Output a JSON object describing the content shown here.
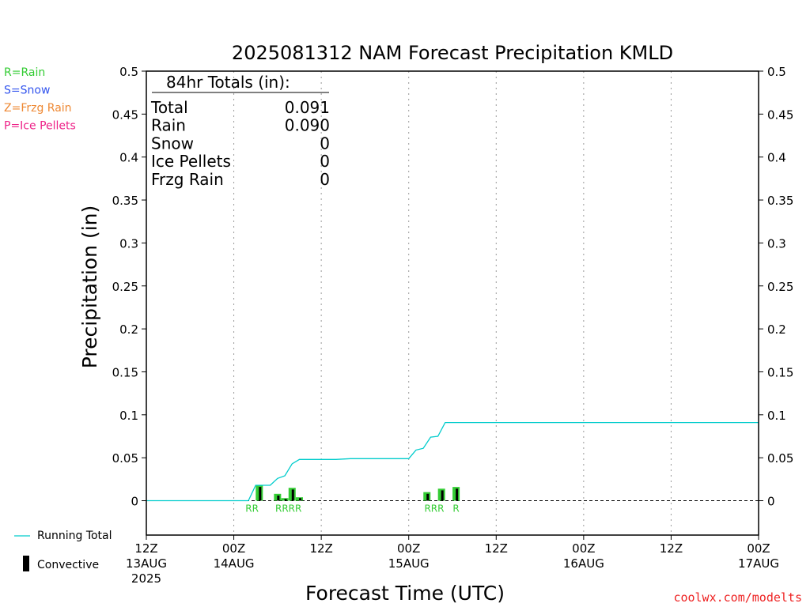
{
  "chart_data": {
    "type": "bar",
    "title": "2025081312 NAM Forecast Precipitation KMLD",
    "xlabel": "Forecast Time (UTC)",
    "ylabel": "Precipitation (in)",
    "ylim": [
      -0.04,
      0.5
    ],
    "y_ticks": [
      "0.5",
      "0.45",
      "0.4",
      "0.35",
      "0.3",
      "0.25",
      "0.2",
      "0.15",
      "0.1",
      "0.05",
      "0"
    ],
    "xlim_hours": [
      0,
      84
    ],
    "grid": "vertical dotted at 12-hour intervals",
    "x_ticks": [
      {
        "hour": 0,
        "lines": [
          "12Z",
          "13AUG",
          "2025"
        ]
      },
      {
        "hour": 12,
        "lines": [
          "00Z",
          "14AUG"
        ]
      },
      {
        "hour": 24,
        "lines": [
          "12Z"
        ]
      },
      {
        "hour": 36,
        "lines": [
          "00Z",
          "15AUG"
        ]
      },
      {
        "hour": 48,
        "lines": [
          "12Z"
        ]
      },
      {
        "hour": 60,
        "lines": [
          "00Z",
          "16AUG"
        ]
      },
      {
        "hour": 72,
        "lines": [
          "12Z"
        ]
      },
      {
        "hour": 84,
        "lines": [
          "00Z",
          "17AUG"
        ]
      }
    ],
    "series": [
      {
        "name": "Running Total",
        "color": "#00cccc",
        "x": [
          0,
          3,
          6,
          9,
          12,
          14,
          15,
          16,
          17,
          18,
          19,
          20,
          21,
          22,
          24,
          26,
          28,
          30,
          32,
          34,
          36,
          37,
          38,
          39,
          40,
          41,
          42,
          43,
          45,
          48,
          51,
          54,
          57,
          60,
          63,
          66,
          69,
          72,
          75,
          78,
          81,
          84
        ],
        "y": [
          0,
          0,
          0,
          0,
          0,
          0,
          0.018,
          0.018,
          0.018,
          0.026,
          0.029,
          0.043,
          0.048,
          0.048,
          0.048,
          0.048,
          0.049,
          0.049,
          0.049,
          0.049,
          0.049,
          0.059,
          0.061,
          0.074,
          0.075,
          0.091,
          0.091,
          0.091,
          0.091,
          0.091,
          0.091,
          0.091,
          0.091,
          0.091,
          0.091,
          0.091,
          0.091,
          0.091,
          0.091,
          0.091,
          0.091,
          0.091
        ]
      }
    ],
    "bars": [
      {
        "hour": 15.5,
        "total": 0.018,
        "convective": 0.016,
        "type": "R"
      },
      {
        "hour": 18.0,
        "total": 0.008,
        "convective": 0.006,
        "type": "R"
      },
      {
        "hour": 19.0,
        "total": 0.003,
        "convective": 0.002,
        "type": "R"
      },
      {
        "hour": 20.0,
        "total": 0.015,
        "convective": 0.013,
        "type": "R"
      },
      {
        "hour": 21.0,
        "total": 0.004,
        "convective": 0.003,
        "type": "R"
      },
      {
        "hour": 38.5,
        "total": 0.01,
        "convective": 0.008,
        "type": "R"
      },
      {
        "hour": 40.5,
        "total": 0.014,
        "convective": 0.012,
        "type": "R"
      },
      {
        "hour": 42.5,
        "total": 0.016,
        "convective": 0.014,
        "type": "R"
      }
    ],
    "precip_type_labels": [
      {
        "text": "RR",
        "hour": 14.5
      },
      {
        "text": "RRRR",
        "hour": 19.5
      },
      {
        "text": "RRR",
        "hour": 39.5
      },
      {
        "text": "R",
        "hour": 42.5
      }
    ],
    "bar_color": "#33cc33",
    "convective_color": "#000000",
    "totals_box": {
      "heading": "84hr Totals (in):",
      "rows": [
        {
          "label": "Total",
          "value": "0.091"
        },
        {
          "label": "Rain",
          "value": "0.090"
        },
        {
          "label": "Snow",
          "value": "0"
        },
        {
          "label": "Ice Pellets",
          "value": "0"
        },
        {
          "label": "Frzg Rain",
          "value": "0"
        }
      ]
    },
    "type_key": [
      {
        "text": "R=Rain",
        "color": "#33cc33"
      },
      {
        "text": "S=Snow",
        "color": "#3355ee"
      },
      {
        "text": "Z=Frzg Rain",
        "color": "#ee8833"
      },
      {
        "text": "P=Ice Pellets",
        "color": "#ee2288"
      }
    ],
    "legend": [
      {
        "label": "Running Total",
        "symbol": "line",
        "color": "#00cccc"
      },
      {
        "label": "Convective",
        "symbol": "bar",
        "color": "#000000"
      }
    ]
  },
  "credit": "coolwx.com/modelts",
  "credit_color": "#ee2222"
}
